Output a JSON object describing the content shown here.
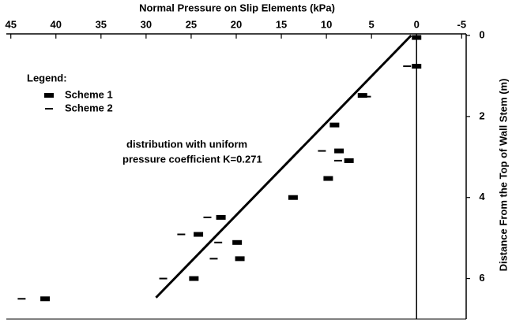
{
  "chart_data": {
    "type": "scatter",
    "title": "Normal Pressure on Slip Elements (kPa)",
    "y_label": "Distance From the Top of Wall Stem (m)",
    "legend_title": "Legend:",
    "annotation": [
      "distribution with uniform",
      "pressure coefficient K=0.271"
    ],
    "xlim": [
      45.5,
      -5.5
    ],
    "xticks": [
      45,
      40,
      35,
      30,
      25,
      20,
      15,
      10,
      5,
      0,
      -5
    ],
    "ylim": [
      0,
      7
    ],
    "yticks": [
      0,
      2,
      4,
      6
    ],
    "series": [
      {
        "name": "Scheme 1",
        "color": "#000000",
        "marker": "bar",
        "x": [
          0,
          0,
          6.0,
          9.1,
          8.6,
          7.5,
          9.8,
          13.7,
          21.7,
          24.2,
          19.9,
          19.6,
          24.7,
          41.2
        ],
        "y": [
          0.05,
          0.76,
          1.48,
          2.21,
          2.85,
          3.09,
          3.53,
          4.0,
          4.49,
          4.91,
          5.11,
          5.51,
          6.0,
          6.5
        ]
      },
      {
        "name": "Scheme 2",
        "color": "#000000",
        "marker": "dash",
        "x": [
          1.05,
          5.5,
          10.5,
          8.7,
          23.2,
          26.1,
          22.0,
          22.5,
          28.1,
          43.8
        ],
        "y": [
          0.76,
          1.51,
          2.85,
          3.09,
          4.49,
          4.91,
          5.11,
          5.51,
          6.0,
          6.5
        ]
      }
    ],
    "lines": [
      {
        "color": "#000000",
        "x": [
          0.6,
          28.9
        ],
        "y": [
          0,
          6.47
        ]
      }
    ]
  }
}
